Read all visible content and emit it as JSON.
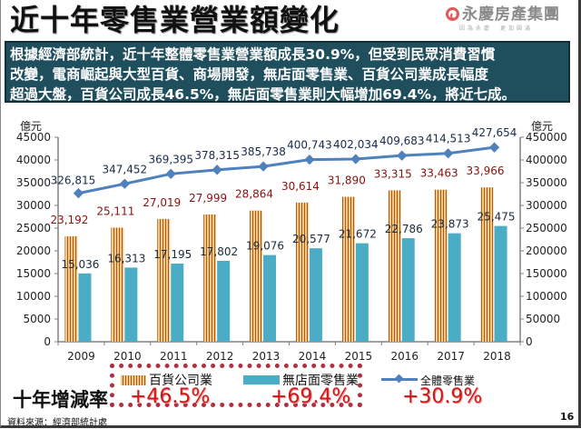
{
  "header": {
    "title": "近十年零售業營業額變化",
    "logo_text": "永慶房產集團",
    "logo_tagline": "因為永慶　更加圓滿"
  },
  "summary": {
    "lines": [
      "根據經濟部統計，近十年整體零售業營業額成長30.9%，但受到民眾消費習慣",
      "改變，電商崛起與大型百貨、商場開發，無店面零售業、百貨公司業成長幅度",
      "超過大盤，百貨公司成長46.5%，無店面零售業則大幅增加69.4%，將近七成。"
    ]
  },
  "chart_data": {
    "type": "bar",
    "title": "",
    "categories": [
      "2009",
      "2010",
      "2011",
      "2012",
      "2013",
      "2014",
      "2015",
      "2016",
      "2017",
      "2018"
    ],
    "series": [
      {
        "name": "百貨公司業",
        "kind": "bar",
        "axis": "left",
        "color": "#f5c88a",
        "stripe_color": "#a0601c",
        "values": [
          23192,
          25111,
          27019,
          27999,
          28864,
          30614,
          31890,
          33315,
          33463,
          33966
        ],
        "labels": [
          "23,192",
          "25,111",
          "27,019",
          "27,999",
          "28,864",
          "30,614",
          "31,890",
          "33,315",
          "33,463",
          "33,966"
        ]
      },
      {
        "name": "無店面零售業",
        "kind": "bar",
        "axis": "left",
        "color": "#4bacc6",
        "values": [
          15036,
          16313,
          17195,
          17802,
          19076,
          20577,
          21672,
          22786,
          23873,
          25475
        ],
        "labels": [
          "15,036",
          "16,313",
          "17,195",
          "17,802",
          "19,076",
          "20,577",
          "21,672",
          "22,786",
          "23,873",
          "25,475"
        ]
      },
      {
        "name": "全體零售業",
        "kind": "line",
        "axis": "right",
        "color": "#4f81bd",
        "values": [
          326815,
          347452,
          369395,
          378315,
          385738,
          400743,
          402034,
          409683,
          414513,
          427654
        ],
        "labels": [
          "326,815",
          "347,452",
          "369,395",
          "378,315",
          "385,738",
          "400,743",
          "402,034",
          "409,683",
          "414,513",
          "427,654"
        ]
      }
    ],
    "left_axis": {
      "unit": "億元",
      "ylim": [
        0,
        45000
      ],
      "ticks": [
        "0",
        "5000",
        "10000",
        "15000",
        "20000",
        "25000",
        "30000",
        "35000",
        "40000",
        "45000"
      ]
    },
    "right_axis": {
      "unit": "億元",
      "ylim": [
        0,
        450000
      ],
      "ticks": [
        "0",
        "50000",
        "100000",
        "150000",
        "200000",
        "250000",
        "300000",
        "350000",
        "400000",
        "450000"
      ]
    },
    "grid": false,
    "legend_position": "bottom"
  },
  "growth": {
    "title": "十年增減率",
    "items": [
      {
        "label": "百貨公司業",
        "rate": "+46.5%"
      },
      {
        "label": "無店面零售業",
        "rate": "+69.4%"
      },
      {
        "label": "全體零售業",
        "rate": "+30.9%"
      }
    ]
  },
  "footer": {
    "source": "資料來源：經濟部統計處",
    "page": "16"
  }
}
